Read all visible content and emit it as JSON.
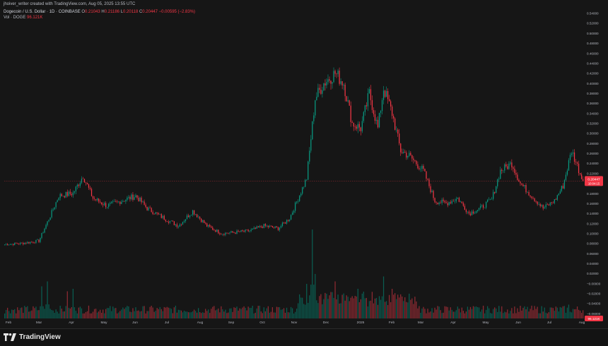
{
  "header": {
    "credit": "jhoiver_writer created with TradingView.com, Aug 05, 2025 13:55 UTC",
    "symbol": "Dogecoin / U.S. Dollar · 1D · COINBASE",
    "o_label": "O",
    "o_value": "0.21043",
    "h_label": "H",
    "h_value": "0.21186",
    "l_label": "L",
    "l_value": "0.20118",
    "c_label": "C",
    "c_value": "0.20447",
    "change": "−0.00595 (−2.83%)",
    "vol_label": "Vol · DOGE",
    "vol_value": "96.121K"
  },
  "price_tag": {
    "price": "0.20447",
    "countdown": "10:04:15"
  },
  "vol_tag": {
    "value": "96.121K"
  },
  "branding": {
    "logo_text": "TradingView",
    "logo_icon": "tradingview-logo-icon"
  },
  "colors": {
    "up": "#089981",
    "down": "#f23645",
    "background": "#161616",
    "axis_text": "#b2b5be"
  },
  "chart_data": {
    "type": "candlestick",
    "symbol": "DOGE/USD",
    "interval": "1D",
    "y_axis_labels": [
      "0.54000",
      "0.52000",
      "0.50000",
      "0.48000",
      "0.46000",
      "0.44000",
      "0.42000",
      "0.40000",
      "0.38000",
      "0.36000",
      "0.34000",
      "0.32000",
      "0.30000",
      "0.28000",
      "0.26000",
      "0.24000",
      "0.22000",
      "0.18000",
      "0.16000",
      "0.14000",
      "0.12000",
      "0.10000",
      "0.08000",
      "0.06000",
      "0.04000",
      "0.02000",
      "−0.00000",
      "−0.02000",
      "−0.04000",
      "−0.06000"
    ],
    "x_axis_labels": [
      "Feb",
      "Mar",
      "Apr",
      "May",
      "Jun",
      "Jul",
      "Aug",
      "Sep",
      "Oct",
      "Nov",
      "Dec",
      "2025",
      "Feb",
      "Mar",
      "Apr",
      "May",
      "Jun",
      "Jul",
      "Aug"
    ],
    "price_anchors": [
      [
        0,
        0.078
      ],
      [
        12,
        0.08
      ],
      [
        24,
        0.085
      ],
      [
        32,
        0.135
      ],
      [
        38,
        0.175
      ],
      [
        48,
        0.18
      ],
      [
        55,
        0.215
      ],
      [
        62,
        0.17
      ],
      [
        72,
        0.155
      ],
      [
        82,
        0.165
      ],
      [
        92,
        0.175
      ],
      [
        100,
        0.15
      ],
      [
        112,
        0.13
      ],
      [
        122,
        0.115
      ],
      [
        132,
        0.145
      ],
      [
        142,
        0.115
      ],
      [
        152,
        0.1
      ],
      [
        162,
        0.102
      ],
      [
        172,
        0.105
      ],
      [
        182,
        0.115
      ],
      [
        192,
        0.11
      ],
      [
        200,
        0.13
      ],
      [
        206,
        0.17
      ],
      [
        212,
        0.21
      ],
      [
        218,
        0.37
      ],
      [
        224,
        0.4
      ],
      [
        232,
        0.42
      ],
      [
        238,
        0.4
      ],
      [
        244,
        0.32
      ],
      [
        250,
        0.31
      ],
      [
        256,
        0.38
      ],
      [
        262,
        0.31
      ],
      [
        266,
        0.39
      ],
      [
        272,
        0.34
      ],
      [
        278,
        0.265
      ],
      [
        284,
        0.255
      ],
      [
        294,
        0.225
      ],
      [
        302,
        0.165
      ],
      [
        310,
        0.16
      ],
      [
        318,
        0.17
      ],
      [
        326,
        0.14
      ],
      [
        334,
        0.15
      ],
      [
        342,
        0.168
      ],
      [
        348,
        0.225
      ],
      [
        356,
        0.24
      ],
      [
        362,
        0.2
      ],
      [
        370,
        0.175
      ],
      [
        378,
        0.15
      ],
      [
        386,
        0.165
      ],
      [
        392,
        0.195
      ],
      [
        398,
        0.265
      ],
      [
        402,
        0.235
      ],
      [
        406,
        0.204
      ]
    ],
    "volume_spikes": [
      [
        26,
        6.5
      ],
      [
        30,
        7.5
      ],
      [
        44,
        5.5
      ],
      [
        48,
        6.0
      ],
      [
        212,
        7.0
      ],
      [
        216,
        18.0
      ],
      [
        218,
        9.0
      ],
      [
        232,
        7.5
      ],
      [
        248,
        6.0
      ],
      [
        266,
        8.5
      ],
      [
        272,
        6.0
      ],
      [
        396,
        2.8
      ]
    ],
    "last_price": 0.20447,
    "ylim": [
      -0.07,
      0.545
    ]
  }
}
